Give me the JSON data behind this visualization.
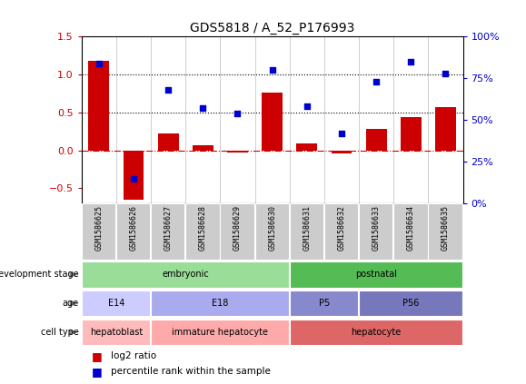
{
  "title": "GDS5818 / A_52_P176993",
  "samples": [
    "GSM1586625",
    "GSM1586626",
    "GSM1586627",
    "GSM1586628",
    "GSM1586629",
    "GSM1586630",
    "GSM1586631",
    "GSM1586632",
    "GSM1586633",
    "GSM1586634",
    "GSM1586635"
  ],
  "log2_ratio": [
    1.18,
    -0.65,
    0.22,
    0.07,
    -0.03,
    0.76,
    0.09,
    -0.04,
    0.28,
    0.44,
    0.57
  ],
  "percentile": [
    84,
    15,
    68,
    57,
    54,
    80,
    58,
    42,
    73,
    85,
    78
  ],
  "ylim_left": [
    -0.7,
    1.5
  ],
  "ylim_right": [
    0,
    100
  ],
  "yticks_left": [
    -0.5,
    0.0,
    0.5,
    1.0,
    1.5
  ],
  "yticks_right": [
    0,
    25,
    50,
    75,
    100
  ],
  "yticklabels_right": [
    "0%",
    "25%",
    "50%",
    "75%",
    "100%"
  ],
  "bar_color": "#cc0000",
  "dot_color": "#0000cc",
  "zero_line_color": "#cc0000",
  "dotted_line_color": "#000000",
  "development_stage_segments": [
    {
      "start": 0,
      "end": 5,
      "color": "#99dd99",
      "label": "embryonic"
    },
    {
      "start": 6,
      "end": 10,
      "color": "#55bb55",
      "label": "postnatal"
    }
  ],
  "age_segments": [
    {
      "start": 0,
      "end": 1,
      "color": "#ccccff",
      "label": "E14"
    },
    {
      "start": 2,
      "end": 5,
      "color": "#aaaaee",
      "label": "E18"
    },
    {
      "start": 6,
      "end": 7,
      "color": "#8888cc",
      "label": "P5"
    },
    {
      "start": 8,
      "end": 10,
      "color": "#7777bb",
      "label": "P56"
    }
  ],
  "cell_type_segments": [
    {
      "start": 0,
      "end": 1,
      "color": "#ffbbbb",
      "label": "hepatoblast"
    },
    {
      "start": 2,
      "end": 5,
      "color": "#ffaaaa",
      "label": "immature hepatocyte"
    },
    {
      "start": 6,
      "end": 10,
      "color": "#dd6666",
      "label": "hepatocyte"
    }
  ],
  "row_labels": [
    "development stage",
    "age",
    "cell type"
  ],
  "legend_items": [
    "log2 ratio",
    "percentile rank within the sample"
  ],
  "background_color": "#ffffff",
  "xticklabel_bg": "#cccccc"
}
